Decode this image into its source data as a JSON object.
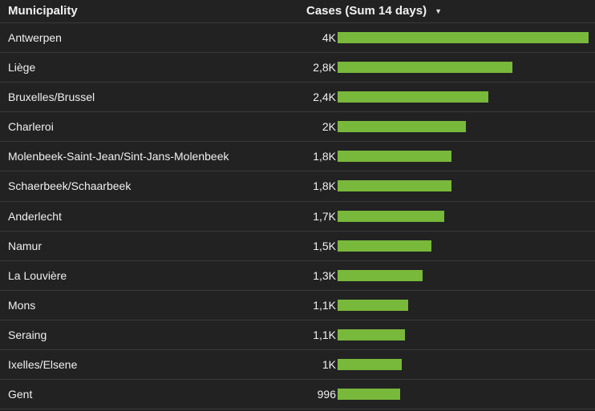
{
  "header": {
    "municipality_label": "Municipality",
    "cases_label": "Cases (Sum 14 days)",
    "sort_icon": "sort-desc-icon"
  },
  "colors": {
    "background": "#222222",
    "bar": "#78b83b",
    "divider": "#3a3a3a"
  },
  "chart_data": {
    "type": "bar",
    "orientation": "horizontal",
    "title": "",
    "xlabel": "Cases (Sum 14 days)",
    "ylabel": "Municipality",
    "xlim": [
      0,
      4000
    ],
    "rows": [
      {
        "name": "Antwerpen",
        "label": "4K",
        "value": 4000
      },
      {
        "name": "Liège",
        "label": "2,8K",
        "value": 2780
      },
      {
        "name": "Bruxelles/Brussel",
        "label": "2,4K",
        "value": 2400
      },
      {
        "name": "Charleroi",
        "label": "2K",
        "value": 2050
      },
      {
        "name": "Molenbeek-Saint-Jean/Sint-Jans-Molenbeek",
        "label": "1,8K",
        "value": 1820
      },
      {
        "name": "Schaerbeek/Schaarbeek",
        "label": "1,8K",
        "value": 1810
      },
      {
        "name": "Anderlecht",
        "label": "1,7K",
        "value": 1700
      },
      {
        "name": "Namur",
        "label": "1,5K",
        "value": 1490
      },
      {
        "name": "La Louvière",
        "label": "1,3K",
        "value": 1350
      },
      {
        "name": "Mons",
        "label": "1,1K",
        "value": 1120
      },
      {
        "name": "Seraing",
        "label": "1,1K",
        "value": 1070
      },
      {
        "name": "Ixelles/Elsene",
        "label": "1K",
        "value": 1020
      },
      {
        "name": "Gent",
        "label": "996",
        "value": 996
      }
    ]
  }
}
